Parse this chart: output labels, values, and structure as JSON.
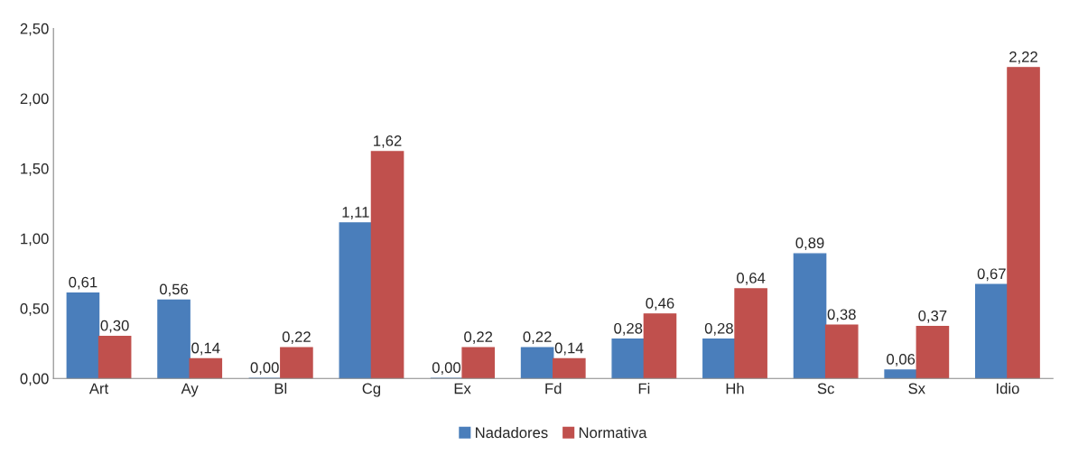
{
  "chart_data": {
    "type": "bar",
    "categories": [
      "Art",
      "Ay",
      "Bl",
      "Cg",
      "Ex",
      "Fd",
      "Fi",
      "Hh",
      "Sc",
      "Sx",
      "Idio"
    ],
    "series": [
      {
        "name": "Nadadores",
        "color": "#4a7ebb",
        "values": [
          0.61,
          0.56,
          0.0,
          1.11,
          0.0,
          0.22,
          0.28,
          0.28,
          0.89,
          0.06,
          0.67
        ],
        "value_labels": [
          "0,61",
          "0,56",
          "0,00",
          "1,11",
          "0,00",
          "0,22",
          "0,28",
          "0,28",
          "0,89",
          "0,06",
          "0,67"
        ]
      },
      {
        "name": "Normativa",
        "color": "#c0504d",
        "values": [
          0.3,
          0.14,
          0.22,
          1.62,
          0.22,
          0.14,
          0.46,
          0.64,
          0.38,
          0.37,
          2.22
        ],
        "value_labels": [
          "0,30",
          "0,14",
          "0,22",
          "1,62",
          "0,22",
          "0,14",
          "0,46",
          "0,64",
          "0,38",
          "0,37",
          "2,22"
        ]
      }
    ],
    "ylim": [
      0,
      2.5
    ],
    "yticks": [
      {
        "value": 0,
        "label": "0,00"
      },
      {
        "value": 0.5,
        "label": "0,50"
      },
      {
        "value": 1.0,
        "label": "1,00"
      },
      {
        "value": 1.5,
        "label": "1,50"
      },
      {
        "value": 2.0,
        "label": "2,00"
      },
      {
        "value": 2.5,
        "label": "2,50"
      }
    ],
    "grid": false,
    "legend": "bottom"
  }
}
